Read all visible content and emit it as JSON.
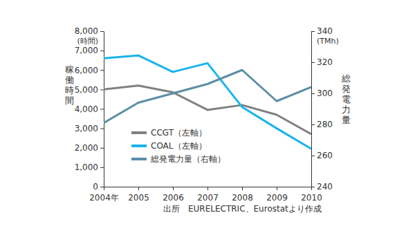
{
  "chart_data": {
    "type": "line",
    "ylabel": "稼働時間",
    "y_unit": "(時間)",
    "y2label": "総発電力量",
    "y2_unit": "(TMh)",
    "source": "出所　EURELECTRIC、Eurostatより作成",
    "categories": [
      "2004年",
      "2005",
      "2006",
      "2007",
      "2008",
      "2009",
      "2010"
    ],
    "series": [
      {
        "name": "CCGT（左軸）",
        "color": "#808080",
        "axis": "y",
        "values": [
          5000,
          5200,
          4850,
          3950,
          4200,
          3700,
          2700
        ]
      },
      {
        "name": "COAL（左軸）",
        "color": "#1ab4ea",
        "axis": "y",
        "values": [
          6600,
          6750,
          5900,
          6350,
          4100,
          3000,
          1950
        ]
      },
      {
        "name": "総発電力量（右軸）",
        "color": "#5b8ea6",
        "axis": "y2",
        "values": [
          281,
          294,
          300,
          306,
          315,
          295,
          304
        ]
      }
    ],
    "ylim": [
      0,
      8000
    ],
    "yticks": [
      0,
      {
        "value": 1000,
        "label": "1,000"
      },
      {
        "value": 2000,
        "label": "2,000"
      },
      {
        "value": 3000,
        "label": "3,000"
      },
      {
        "value": 4000,
        "label": "4,000"
      },
      {
        "value": 5000,
        "label": "5,000"
      },
      {
        "value": 6000,
        "label": "6,000"
      },
      {
        "value": 7000,
        "label": "7,000"
      },
      {
        "value": 8000,
        "label": "8,000"
      }
    ],
    "y2lim": [
      240,
      340
    ],
    "y2ticks": [
      240,
      260,
      280,
      300,
      320,
      340
    ],
    "grid": false,
    "legend": "lower left"
  }
}
